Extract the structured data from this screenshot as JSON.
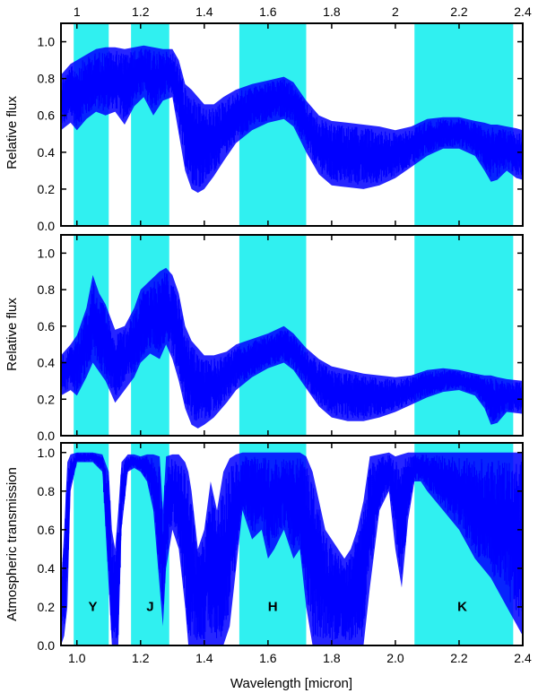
{
  "colors": {
    "band": "#30f0f0",
    "spectrum": "#0000ff",
    "axis": "#000000"
  },
  "chart_data": [
    {
      "type": "line",
      "panel": "top",
      "ylabel": "Relative flux",
      "xlim": [
        0.95,
        2.4
      ],
      "ylim": [
        0,
        1.1
      ],
      "xticks": [
        1,
        1.2,
        1.4,
        1.6,
        1.8,
        2,
        2.2,
        2.4
      ],
      "xtick_labels_top": [
        "1",
        "1.2",
        "1.4",
        "1.6",
        "1.8",
        "2",
        "2.2",
        "2.4"
      ],
      "yticks": [
        "0.0",
        "0.2",
        "0.4",
        "0.6",
        "0.8",
        "1.0"
      ],
      "shaded_bands": [
        [
          0.99,
          1.1
        ],
        [
          1.17,
          1.29
        ],
        [
          1.51,
          1.72
        ],
        [
          2.06,
          2.37
        ]
      ],
      "series": [
        {
          "x": [
            0.95,
            0.98,
            1.0,
            1.03,
            1.06,
            1.09,
            1.12,
            1.15,
            1.18,
            1.21,
            1.24,
            1.27,
            1.3,
            1.32,
            1.34,
            1.36,
            1.38,
            1.4,
            1.43,
            1.46,
            1.5,
            1.55,
            1.6,
            1.65,
            1.68,
            1.72,
            1.76,
            1.8,
            1.85,
            1.9,
            1.95,
            2.0,
            2.05,
            2.1,
            2.15,
            2.2,
            2.25,
            2.28,
            2.3,
            2.32,
            2.35,
            2.38,
            2.4
          ],
          "upper": [
            0.82,
            0.88,
            0.9,
            0.93,
            0.96,
            0.97,
            0.97,
            0.96,
            0.97,
            0.98,
            0.97,
            0.96,
            0.96,
            0.9,
            0.77,
            0.74,
            0.7,
            0.66,
            0.66,
            0.7,
            0.74,
            0.77,
            0.79,
            0.81,
            0.78,
            0.68,
            0.6,
            0.57,
            0.56,
            0.55,
            0.54,
            0.52,
            0.54,
            0.58,
            0.59,
            0.59,
            0.57,
            0.56,
            0.55,
            0.55,
            0.54,
            0.53,
            0.52
          ],
          "lower": [
            0.52,
            0.56,
            0.52,
            0.58,
            0.62,
            0.6,
            0.62,
            0.55,
            0.65,
            0.7,
            0.6,
            0.68,
            0.7,
            0.5,
            0.3,
            0.2,
            0.18,
            0.2,
            0.27,
            0.35,
            0.45,
            0.52,
            0.56,
            0.58,
            0.54,
            0.4,
            0.28,
            0.22,
            0.21,
            0.2,
            0.22,
            0.26,
            0.32,
            0.38,
            0.42,
            0.42,
            0.38,
            0.3,
            0.24,
            0.25,
            0.3,
            0.26,
            0.25
          ]
        }
      ]
    },
    {
      "type": "line",
      "panel": "middle",
      "ylabel": "Relative flux",
      "xlim": [
        0.95,
        2.4
      ],
      "ylim": [
        0,
        1.1
      ],
      "yticks": [
        "0.0",
        "0.2",
        "0.4",
        "0.6",
        "0.8",
        "1.0"
      ],
      "shaded_bands": [
        [
          0.99,
          1.1
        ],
        [
          1.17,
          1.29
        ],
        [
          1.51,
          1.72
        ],
        [
          2.06,
          2.37
        ]
      ],
      "series": [
        {
          "x": [
            0.95,
            0.98,
            1.0,
            1.03,
            1.05,
            1.07,
            1.09,
            1.12,
            1.15,
            1.18,
            1.2,
            1.23,
            1.26,
            1.28,
            1.3,
            1.32,
            1.34,
            1.36,
            1.38,
            1.4,
            1.43,
            1.47,
            1.5,
            1.55,
            1.6,
            1.65,
            1.68,
            1.72,
            1.76,
            1.8,
            1.85,
            1.9,
            1.95,
            2.0,
            2.05,
            2.1,
            2.15,
            2.2,
            2.25,
            2.28,
            2.3,
            2.32,
            2.35,
            2.4
          ],
          "upper": [
            0.44,
            0.5,
            0.55,
            0.7,
            0.88,
            0.78,
            0.72,
            0.58,
            0.6,
            0.7,
            0.8,
            0.85,
            0.9,
            0.92,
            0.88,
            0.78,
            0.6,
            0.52,
            0.48,
            0.44,
            0.44,
            0.46,
            0.5,
            0.53,
            0.56,
            0.6,
            0.56,
            0.48,
            0.42,
            0.38,
            0.36,
            0.34,
            0.33,
            0.32,
            0.33,
            0.36,
            0.37,
            0.36,
            0.34,
            0.33,
            0.33,
            0.32,
            0.31,
            0.3
          ],
          "lower": [
            0.22,
            0.25,
            0.22,
            0.32,
            0.4,
            0.35,
            0.3,
            0.18,
            0.25,
            0.32,
            0.4,
            0.45,
            0.42,
            0.5,
            0.42,
            0.3,
            0.15,
            0.06,
            0.04,
            0.06,
            0.1,
            0.18,
            0.25,
            0.32,
            0.37,
            0.4,
            0.36,
            0.26,
            0.16,
            0.1,
            0.08,
            0.08,
            0.1,
            0.13,
            0.17,
            0.21,
            0.24,
            0.25,
            0.22,
            0.15,
            0.06,
            0.07,
            0.13,
            0.12
          ]
        }
      ]
    },
    {
      "type": "area",
      "panel": "bottom",
      "ylabel": "Atmospheric transmission",
      "xlabel": "Wavelength [micron]",
      "xlim": [
        0.95,
        2.4
      ],
      "ylim": [
        0,
        1.05
      ],
      "xticks": [
        1,
        1.2,
        1.4,
        1.6,
        1.8,
        2,
        2.2,
        2.4
      ],
      "xtick_labels_bottom": [
        "1.0",
        "1.2",
        "1.4",
        "1.6",
        "1.8",
        "2.0",
        "2.2",
        "2.4"
      ],
      "yticks": [
        "0.0",
        "0.2",
        "0.4",
        "0.6",
        "0.8",
        "1.0"
      ],
      "shaded_bands": [
        [
          0.99,
          1.1
        ],
        [
          1.17,
          1.29
        ],
        [
          1.51,
          1.72
        ],
        [
          2.06,
          2.37
        ]
      ],
      "band_labels": [
        {
          "text": "Y",
          "x": 1.05
        },
        {
          "text": "J",
          "x": 1.23
        },
        {
          "text": "H",
          "x": 1.615
        },
        {
          "text": "K",
          "x": 2.21
        }
      ],
      "series": [
        {
          "x": [
            0.95,
            0.96,
            0.97,
            0.98,
            1.0,
            1.05,
            1.08,
            1.1,
            1.11,
            1.12,
            1.13,
            1.14,
            1.16,
            1.18,
            1.2,
            1.22,
            1.24,
            1.26,
            1.27,
            1.28,
            1.3,
            1.32,
            1.34,
            1.35,
            1.36,
            1.38,
            1.4,
            1.42,
            1.44,
            1.46,
            1.48,
            1.5,
            1.52,
            1.55,
            1.58,
            1.6,
            1.62,
            1.65,
            1.68,
            1.7,
            1.72,
            1.74,
            1.76,
            1.78,
            1.8,
            1.82,
            1.84,
            1.86,
            1.88,
            1.9,
            1.92,
            1.95,
            1.98,
            2.0,
            2.02,
            2.04,
            2.06,
            2.08,
            2.1,
            2.15,
            2.2,
            2.25,
            2.3,
            2.35,
            2.4
          ],
          "upper": [
            0.3,
            0.6,
            0.95,
            0.99,
            1.0,
            1.0,
            0.99,
            0.9,
            0.6,
            0.5,
            0.7,
            0.95,
            0.99,
            0.99,
            0.98,
            0.99,
            0.99,
            0.98,
            0.7,
            0.98,
            0.99,
            0.99,
            0.95,
            0.9,
            0.8,
            0.5,
            0.6,
            0.85,
            0.7,
            0.9,
            0.97,
            0.99,
            1.0,
            1.0,
            1.0,
            1.0,
            1.0,
            1.0,
            1.0,
            1.0,
            0.98,
            0.9,
            0.75,
            0.6,
            0.55,
            0.5,
            0.45,
            0.5,
            0.6,
            0.75,
            0.98,
            0.99,
            1.0,
            0.98,
            0.99,
            1.0,
            1.0,
            1.0,
            1.0,
            1.0,
            1.0,
            1.0,
            1.0,
            1.0,
            1.0
          ],
          "lower": [
            0.0,
            0.05,
            0.2,
            0.8,
            0.95,
            0.95,
            0.9,
            0.3,
            0.0,
            0.0,
            0.0,
            0.6,
            0.9,
            0.92,
            0.9,
            0.85,
            0.7,
            0.3,
            0.1,
            0.4,
            0.6,
            0.5,
            0.2,
            0.0,
            0.0,
            0.0,
            0.0,
            0.0,
            0.0,
            0.0,
            0.1,
            0.4,
            0.7,
            0.55,
            0.6,
            0.45,
            0.5,
            0.6,
            0.45,
            0.5,
            0.2,
            0.0,
            0.0,
            0.0,
            0.0,
            0.0,
            0.0,
            0.0,
            0.0,
            0.0,
            0.3,
            0.7,
            0.8,
            0.5,
            0.3,
            0.65,
            0.85,
            0.85,
            0.8,
            0.7,
            0.6,
            0.45,
            0.35,
            0.2,
            0.05
          ]
        }
      ]
    }
  ]
}
